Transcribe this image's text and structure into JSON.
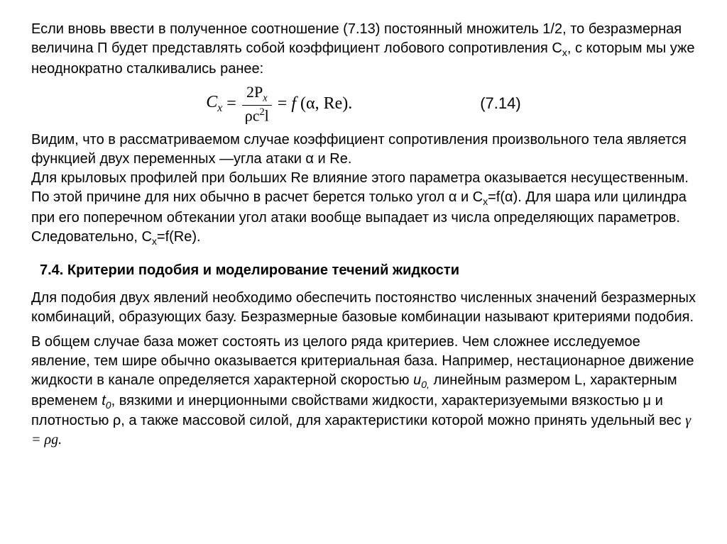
{
  "para1_a": "Если вновь ввести в полученное соотношение (7.13) постоянный множитель 1/2, то безразмерная величина П будет представлять собой коэффициент лобового сопротивления C",
  "para1_sub": "x",
  "para1_b": ", с которым мы уже неоднократно сталкивались ранее:",
  "eq": {
    "Csym": "C",
    "Csub": "x",
    "eq1": "=",
    "num_a": "2P",
    "num_sub": "x",
    "den_a": "ρc",
    "den_sup": "2",
    "den_b": "l",
    "eq2": "=",
    "f": "f",
    "args": " (α,  Re).",
    "number": "(7.14)"
  },
  "para2_a": "Видим, что в рассматриваемом случае коэффициент сопротивления произвольного тела является функцией двух переменных —угла атаки α и Re.",
  "para2_b1": "Для крыловых профилей при больших Re влияние этого параметра оказывается несущественным. По этой причине для них обычно в расчет берется только угол α и C",
  "para2_b1_sub": "x",
  "para2_b2": "=f(α). Для шара или цилиндра при его поперечном обтекании угол атаки вообще выпадает из числа определяющих параметров. Следовательно, C",
  "para2_b2_sub": "x",
  "para2_b3": "=f(Re).",
  "section": "7.4. Критерии подобия и моделирование течений жидкости",
  "para3": "Для подобия двух явлений необходимо обеспечить постоянство численных значений безразмерных комбинаций, образующих базу. Безразмерные базовые комбинации называют критериями подобия.",
  "para4_a": "В общем случае база может состоять из целого ряда критериев. Чем сложнее исследуемое явление, тем шире обычно оказывается критериальная база. Например, нестационарное движение жидкости в канале определяется характерной скоростью ",
  "para4_u": "u",
  "para4_u_sub": "0,",
  "para4_b": " линейным размером L, характерным временем ",
  "para4_t": "t",
  "para4_t_sub": "0",
  "para4_c": ", вязкими и инерционными свойствами жидкости, характеризуемыми вязкостью μ и плотностью ρ, а также массовой силой, для характеристики которой можно принять удельный вес ",
  "para4_gamma": "γ = ρg."
}
